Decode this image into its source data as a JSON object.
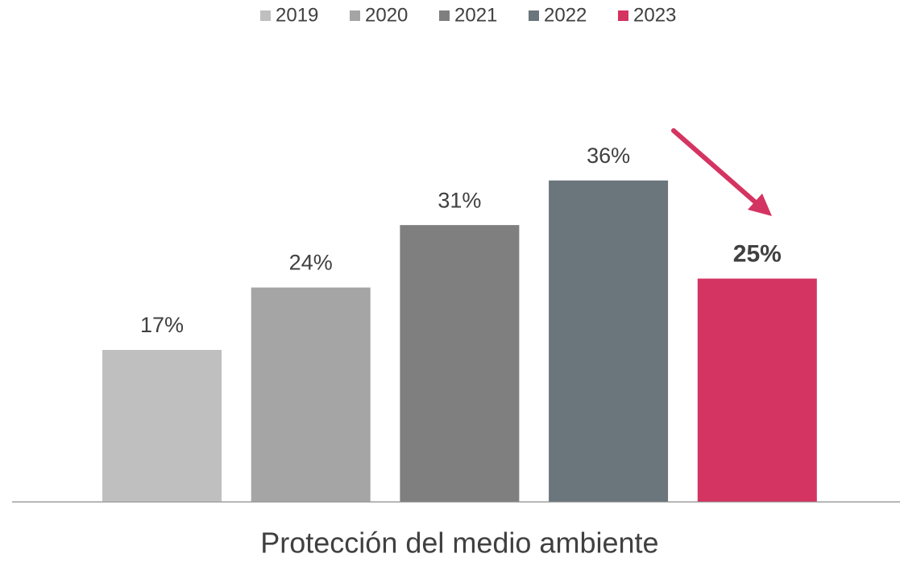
{
  "chart_data": {
    "type": "bar",
    "categories": [
      "Protección del medio ambiente"
    ],
    "series": [
      {
        "name": "2019",
        "color": "#bfbfbf",
        "values": [
          17
        ],
        "value_labels": [
          "17%"
        ]
      },
      {
        "name": "2020",
        "color": "#a5a5a5",
        "values": [
          24
        ],
        "value_labels": [
          "24%"
        ]
      },
      {
        "name": "2021",
        "color": "#7f7f7f",
        "values": [
          31
        ],
        "value_labels": [
          "31%"
        ]
      },
      {
        "name": "2022",
        "color": "#6b757c",
        "values": [
          36
        ],
        "value_labels": [
          "36%"
        ]
      },
      {
        "name": "2023",
        "color": "#d43461",
        "values": [
          25
        ],
        "value_labels": [
          "25%"
        ]
      }
    ]
  }
}
